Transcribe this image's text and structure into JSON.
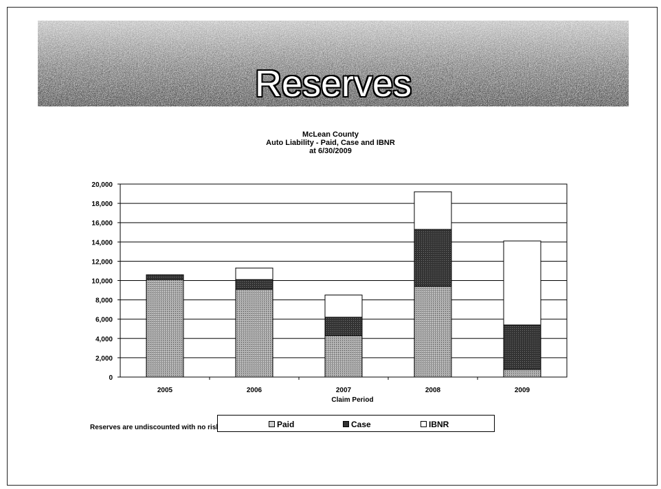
{
  "slide": {
    "title": "Reserves",
    "footnote": "Reserves are undiscounted with no risk"
  },
  "colors": {
    "paid": "#a8a8a8",
    "case": "#333333",
    "ibnr": "#ffffff",
    "banner": "#8a8a8a"
  },
  "chart_data": {
    "type": "bar",
    "stacked": true,
    "title": [
      "McLean County",
      "Auto Liability  - Paid, Case and IBNR",
      "at 6/30/2009"
    ],
    "xlabel": "Claim Period",
    "ylabel": "",
    "categories": [
      "2005",
      "2006",
      "2007",
      "2008",
      "2009"
    ],
    "series": [
      {
        "name": "Paid",
        "values": [
          10100,
          9100,
          4300,
          9400,
          800
        ]
      },
      {
        "name": "Case",
        "values": [
          500,
          1000,
          1900,
          5900,
          4600
        ]
      },
      {
        "name": "IBNR",
        "values": [
          0,
          1200,
          2300,
          3900,
          8700
        ]
      }
    ],
    "ylim": [
      0,
      20000
    ],
    "yticks": [
      "20,000",
      "18,000",
      "16,000",
      "14,000",
      "12,000",
      "10,000",
      "8,000",
      "6,000",
      "4,000",
      "2,000",
      "0"
    ],
    "grid": true,
    "legend_position": "bottom"
  }
}
